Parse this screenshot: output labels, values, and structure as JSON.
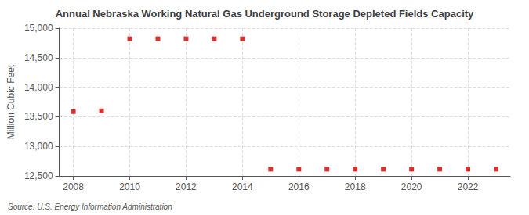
{
  "chart_data": {
    "type": "scatter",
    "title": "Annual Nebraska Working Natural Gas Underground Storage Depleted Fields Capacity",
    "ylabel": "Million Cubic Feet",
    "annotation": "Source: U.S. Energy Information Administration",
    "x": [
      2008,
      2009,
      2010,
      2011,
      2012,
      2013,
      2014,
      2015,
      2016,
      2017,
      2018,
      2019,
      2020,
      2021,
      2022,
      2023
    ],
    "values": [
      13588,
      13601,
      14820,
      14820,
      14820,
      14820,
      14820,
      12614,
      12614,
      12614,
      12614,
      12614,
      12614,
      12614,
      12614,
      12614
    ],
    "color": "#cc0000",
    "marker": "square",
    "xlim": [
      2007.5,
      2023.5
    ],
    "xticks": [
      2008,
      2010,
      2012,
      2014,
      2016,
      2018,
      2020,
      2022
    ],
    "ylim": [
      12500,
      15000
    ],
    "yticks": [
      {
        "value": 12500,
        "label": "12,500"
      },
      {
        "value": 13000,
        "label": "13,000"
      },
      {
        "value": 13500,
        "label": "13,500"
      },
      {
        "value": 14000,
        "label": "14,000"
      },
      {
        "value": 14500,
        "label": "14,500"
      },
      {
        "value": 15000,
        "label": "15,000"
      }
    ],
    "grid": true
  }
}
